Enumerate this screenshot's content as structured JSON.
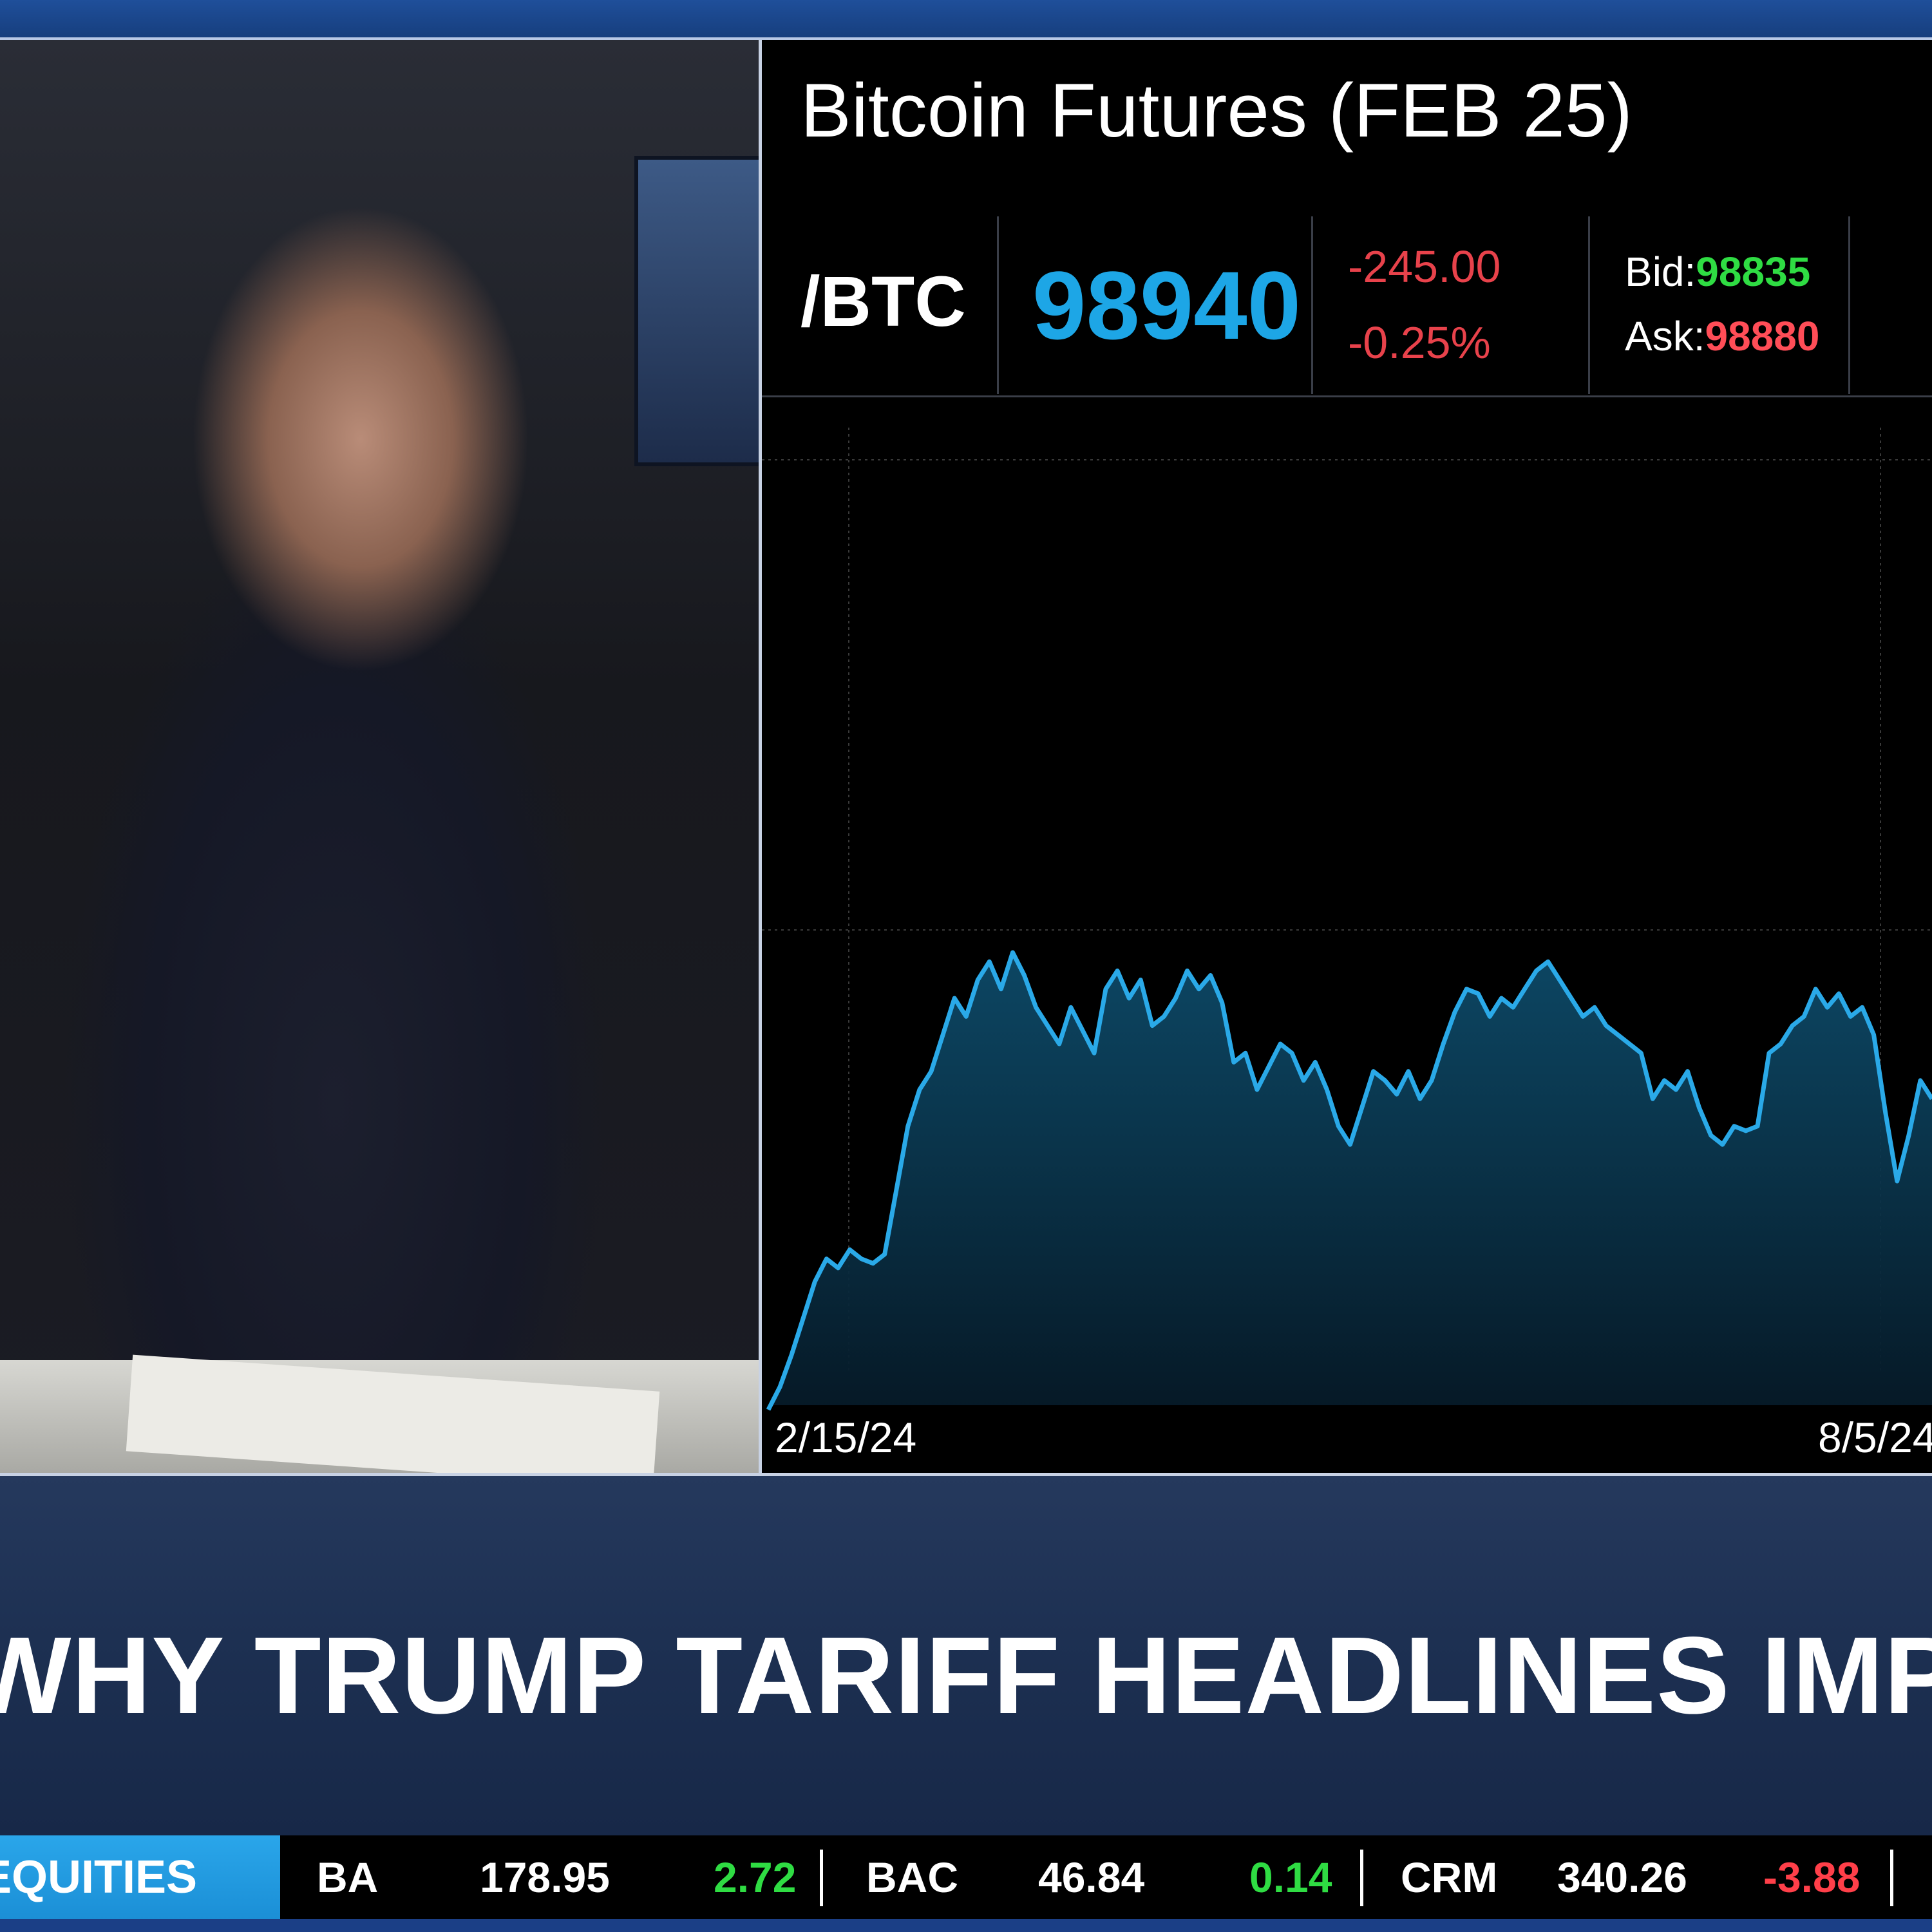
{
  "chart_panel": {
    "title": "Bitcoin Futures (FEB 25)",
    "symbol": "/BTC",
    "last": "98940",
    "change": "-245.00",
    "change_pct": "-0.25%",
    "bid_label": "Bid:",
    "bid_value": "98835",
    "ask_label": "Ask:",
    "ask_value": "98880",
    "colors": {
      "last": "#1da6e6",
      "negative": "#e8424b",
      "bid": "#2fdc43",
      "ask": "#ff4d57"
    }
  },
  "chart_data": {
    "type": "area",
    "x_tick_labels": [
      "2/15/24",
      "8/5/24"
    ],
    "values": [
      0,
      5,
      12,
      20,
      28,
      33,
      31,
      35,
      33,
      32,
      34,
      48,
      62,
      70,
      74,
      82,
      90,
      86,
      94,
      98,
      92,
      100,
      95,
      88,
      84,
      80,
      88,
      83,
      78,
      92,
      96,
      90,
      94,
      84,
      86,
      90,
      96,
      92,
      95,
      89,
      76,
      78,
      70,
      75,
      80,
      78,
      72,
      76,
      70,
      62,
      58,
      66,
      74,
      72,
      69,
      74,
      68,
      72,
      80,
      87,
      92,
      91,
      86,
      90,
      88,
      92,
      96,
      98,
      94,
      90,
      86,
      88,
      84,
      82,
      80,
      78,
      68,
      72,
      70,
      74,
      66,
      60,
      58,
      62,
      61,
      62,
      78,
      80,
      84,
      86,
      92,
      88,
      91,
      86,
      88,
      82,
      65,
      50,
      60,
      72,
      68
    ],
    "grid": true,
    "line_color": "#2aa9e8"
  },
  "headline": "WHY TRUMP TARIFF HEADLINES IMPACTED",
  "ticker": {
    "tab_label": "EQUITIES",
    "items": [
      {
        "symbol": "BA",
        "price": "178.95",
        "change": "2.72"
      },
      {
        "symbol": "BAC",
        "price": "46.84",
        "change": "0.14"
      },
      {
        "symbol": "CRM",
        "price": "340.26",
        "change": "-3.88"
      }
    ]
  }
}
